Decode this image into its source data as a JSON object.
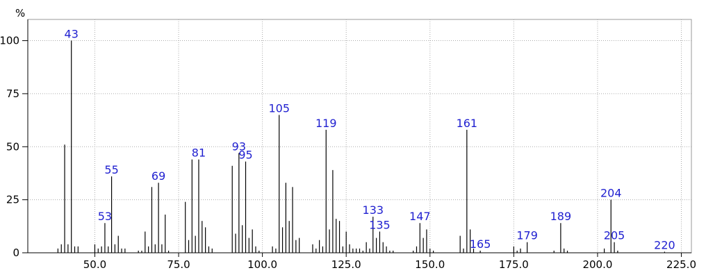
{
  "chart_data": {
    "type": "stick",
    "ylabel": "%",
    "xlim": [
      30,
      228
    ],
    "ylim": [
      0,
      110
    ],
    "xticks": [
      {
        "value": 50,
        "label": "50.0"
      },
      {
        "value": 75,
        "label": "75.0"
      },
      {
        "value": 100,
        "label": "100.0"
      },
      {
        "value": 125,
        "label": "125.0"
      },
      {
        "value": 150,
        "label": "150.0"
      },
      {
        "value": 175,
        "label": "175.0"
      },
      {
        "value": 200,
        "label": "200.0"
      },
      {
        "value": 225,
        "label": "225.0"
      }
    ],
    "yticks": [
      0,
      25,
      50,
      75,
      100
    ],
    "grid": true,
    "color": "#000000",
    "annotation_color": "#1f1fd0",
    "x": [
      39,
      40,
      41,
      42,
      43,
      44,
      45,
      50,
      51,
      52,
      53,
      54,
      55,
      56,
      57,
      58,
      59,
      63,
      64,
      65,
      66,
      67,
      68,
      69,
      70,
      71,
      72,
      77,
      78,
      79,
      80,
      81,
      82,
      83,
      84,
      85,
      91,
      92,
      93,
      94,
      95,
      96,
      97,
      98,
      99,
      103,
      104,
      105,
      106,
      107,
      108,
      109,
      110,
      111,
      115,
      116,
      117,
      118,
      119,
      120,
      121,
      122,
      123,
      124,
      125,
      126,
      127,
      128,
      129,
      130,
      131,
      132,
      133,
      134,
      135,
      136,
      137,
      138,
      139,
      145,
      146,
      147,
      148,
      149,
      150,
      151,
      159,
      160,
      161,
      162,
      163,
      165,
      175,
      176,
      177,
      179,
      187,
      189,
      190,
      191,
      202,
      204,
      205,
      206,
      220
    ],
    "values": [
      2,
      4,
      51,
      4,
      100,
      3,
      3,
      4,
      2,
      3,
      14,
      3,
      36,
      4,
      8,
      2,
      2,
      1,
      1,
      10,
      3,
      31,
      4,
      33,
      4,
      18,
      1,
      24,
      6,
      44,
      8,
      44,
      15,
      12,
      3,
      2,
      41,
      9,
      47,
      13,
      43,
      7,
      11,
      3,
      1,
      3,
      2,
      65,
      12,
      33,
      15,
      31,
      6,
      7,
      4,
      2,
      6,
      3,
      58,
      11,
      39,
      16,
      15,
      3,
      10,
      4,
      2,
      2,
      2,
      1,
      5,
      2,
      17,
      7,
      10,
      5,
      3,
      1,
      1,
      1,
      3,
      14,
      7,
      11,
      2,
      1,
      8,
      2,
      58,
      11,
      2,
      1,
      3,
      1,
      2,
      5,
      1,
      14,
      2,
      1,
      2,
      25,
      5,
      1,
      0.5
    ],
    "annotations": [
      43,
      53,
      55,
      69,
      81,
      93,
      95,
      105,
      119,
      133,
      135,
      147,
      161,
      165,
      179,
      189,
      204,
      205,
      220
    ]
  }
}
